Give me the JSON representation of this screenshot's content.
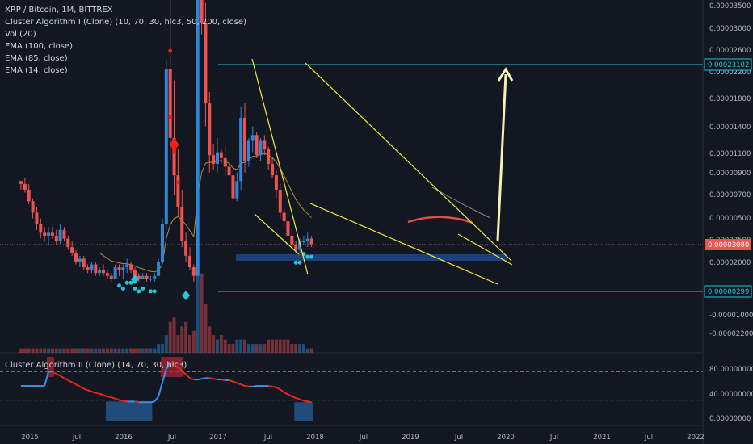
{
  "header": {
    "symbol": "XRP / Bitcoin, 1M, BITTREX",
    "indicators": [
      "Cluster Algorithm I (Clone) (10, 70, 30, hlc3, 50, 200, close)",
      "Vol (20)",
      "EMA (100, close)",
      "EMA (85, close)",
      "EMA (14, close)"
    ]
  },
  "indicator_pane": {
    "title": "Cluster Algorithm II (Clone) (14, 70, 30, hlc3)"
  },
  "colors": {
    "background": "#131722",
    "up": "#2e86d4",
    "down": "#ef5350",
    "trendline": "#f5ea36",
    "level": "#26c6da",
    "signal": "#26c6da",
    "signal_sell": "#ff1a1a",
    "price_badge": "#ef5350",
    "arrow": "#f3f0b0",
    "ema_orange": "#b6893a",
    "ema_red": "#e84a4a",
    "ema_grey": "#8b8f9a"
  },
  "chart_data": [
    {
      "type": "candlestick",
      "title": "XRP / Bitcoin, 1M, BITTREX",
      "y_axis_labels": [
        "0.00003500",
        "0.00003000",
        "0.00002600",
        "0.00002200",
        "0.00001800",
        "0.00001400",
        "0.00001100",
        "0.00000900",
        "0.00000700",
        "0.00000500",
        "0.00003500",
        "0.00002000",
        "-0.00001000",
        "-0.00002200"
      ],
      "x_axis_labels": [
        "2015",
        "Jul",
        "2016",
        "Jul",
        "2017",
        "Jul",
        "2018",
        "Jul",
        "2019",
        "Jul",
        "2020",
        "Jul",
        "2021",
        "Jul",
        "2022"
      ],
      "price_badge": "0.00003080",
      "level_labels": [
        "0.00023102",
        "0.00000299"
      ],
      "ohlc": [
        [
          37,
          37,
          34,
          36
        ],
        [
          36,
          38,
          33,
          34
        ],
        [
          34,
          36,
          29,
          30
        ],
        [
          30,
          31,
          24,
          26
        ],
        [
          26,
          28,
          20,
          22
        ],
        [
          22,
          24,
          17,
          19
        ],
        [
          19,
          21,
          16,
          18
        ],
        [
          18,
          21,
          15,
          19
        ],
        [
          19,
          21,
          17,
          18
        ],
        [
          18,
          20,
          15,
          16
        ],
        [
          16,
          22,
          15,
          20
        ],
        [
          20,
          21,
          16,
          17
        ],
        [
          17,
          18,
          13,
          14
        ],
        [
          14,
          16,
          11,
          12
        ],
        [
          12,
          13,
          8,
          9
        ],
        [
          9,
          11,
          7,
          10
        ],
        [
          10,
          11,
          6,
          7
        ],
        [
          7,
          8,
          5,
          6
        ],
        [
          6,
          9,
          5,
          8
        ],
        [
          8,
          9,
          4,
          5
        ],
        [
          5,
          7,
          4,
          6
        ],
        [
          6,
          8,
          4,
          5
        ],
        [
          5,
          6,
          3,
          4
        ],
        [
          4,
          5,
          2,
          3
        ],
        [
          3,
          8,
          3,
          7
        ],
        [
          7,
          8,
          4,
          6
        ],
        [
          6,
          8,
          3,
          7
        ],
        [
          7,
          10,
          5,
          8
        ],
        [
          8,
          9,
          5,
          6
        ],
        [
          6,
          7,
          3,
          4
        ],
        [
          4,
          5,
          2,
          3
        ],
        [
          3,
          5,
          3,
          4
        ],
        [
          4,
          5,
          2,
          3
        ],
        [
          3,
          4,
          2,
          3
        ],
        [
          3,
          5,
          2,
          4
        ],
        [
          4,
          10,
          4,
          9
        ],
        [
          9,
          24,
          8,
          22
        ],
        [
          22,
          79,
          20,
          76
        ],
        [
          76,
          122,
          44,
          52
        ],
        [
          52,
          72,
          32,
          39
        ],
        [
          39,
          48,
          25,
          28
        ],
        [
          28,
          34,
          14,
          16
        ],
        [
          16,
          19,
          9,
          11
        ],
        [
          11,
          14,
          6,
          7
        ],
        [
          7,
          8,
          2,
          4
        ],
        [
          4,
          130,
          4,
          125
        ],
        [
          125,
          133,
          88,
          92
        ],
        [
          92,
          99,
          56,
          64
        ],
        [
          64,
          68,
          40,
          46
        ],
        [
          46,
          50,
          41,
          43
        ],
        [
          43,
          52,
          40,
          47
        ],
        [
          47,
          48,
          43,
          45
        ],
        [
          45,
          49,
          39,
          42
        ],
        [
          42,
          46,
          38,
          39
        ],
        [
          39,
          41,
          29,
          31
        ],
        [
          31,
          40,
          30,
          37
        ],
        [
          37,
          63,
          34,
          59
        ],
        [
          59,
          64,
          40,
          44
        ],
        [
          44,
          52,
          42,
          51
        ],
        [
          51,
          56,
          47,
          53
        ],
        [
          53,
          54,
          45,
          46
        ],
        [
          46,
          52,
          44,
          51
        ],
        [
          51,
          53,
          46,
          48
        ],
        [
          48,
          49,
          41,
          43
        ],
        [
          43,
          45,
          38,
          39
        ],
        [
          39,
          41,
          31,
          34
        ],
        [
          34,
          36,
          24,
          26
        ],
        [
          26,
          28,
          21,
          23
        ],
        [
          23,
          24,
          17,
          18
        ],
        [
          18,
          20,
          14,
          15
        ],
        [
          15,
          16,
          12,
          13
        ],
        [
          13,
          17,
          12,
          16
        ],
        [
          16,
          18,
          15,
          16
        ],
        [
          16,
          19,
          14,
          17
        ],
        [
          17,
          18,
          14,
          15
        ]
      ],
      "volume": [
        1,
        1,
        1,
        1,
        1,
        1,
        1,
        1,
        1,
        1,
        1,
        1,
        1,
        1,
        1,
        1,
        1,
        1,
        1,
        1,
        1,
        1,
        1,
        1,
        1,
        1,
        1,
        1,
        1,
        1,
        1,
        1,
        1,
        1,
        1,
        2,
        2,
        4,
        7,
        8,
        4,
        6,
        7,
        4,
        5,
        22,
        18,
        11,
        6,
        4,
        3,
        4,
        3,
        2,
        2,
        3,
        3,
        3,
        2,
        2,
        2,
        2,
        2,
        3,
        3,
        3,
        3,
        3,
        3,
        2,
        2,
        2,
        2,
        1,
        1
      ],
      "sell_marker_counts": [
        5
      ],
      "ema_14_start_index": 20
    },
    {
      "type": "line",
      "title": "Cluster Algorithm II (Clone) (14, 70, 30, hlc3)",
      "y_axis_labels": [
        "80.00000000",
        "40.00000000",
        "0.00000000"
      ],
      "ylim": [
        0,
        95
      ],
      "reference_levels": [
        70,
        30
      ],
      "values": [
        50,
        50,
        50,
        50,
        50,
        50,
        50,
        70,
        70,
        67,
        64,
        61,
        58,
        55,
        52,
        49,
        46,
        44,
        42,
        40,
        39,
        37,
        35,
        34,
        32,
        30,
        29,
        28,
        28,
        28,
        27,
        27,
        27,
        27,
        28,
        35,
        55,
        74,
        82,
        80,
        76,
        71,
        66,
        61,
        59,
        59,
        60,
        61,
        61,
        60,
        59,
        59,
        58,
        58,
        56,
        54,
        52,
        50,
        49,
        49,
        50,
        50,
        50,
        50,
        49,
        48,
        45,
        41,
        38,
        35,
        33,
        31,
        29,
        28,
        27
      ],
      "histogram_bands": [
        {
          "from": 7,
          "to": 8,
          "value": 95,
          "kind": "overbought"
        },
        {
          "from": 22,
          "to": 33,
          "value": 28,
          "kind": "oversold"
        },
        {
          "from": 36,
          "to": 41,
          "value": 95,
          "kind": "overbought"
        },
        {
          "from": 70,
          "to": 74,
          "value": 27,
          "kind": "oversold"
        }
      ]
    }
  ]
}
